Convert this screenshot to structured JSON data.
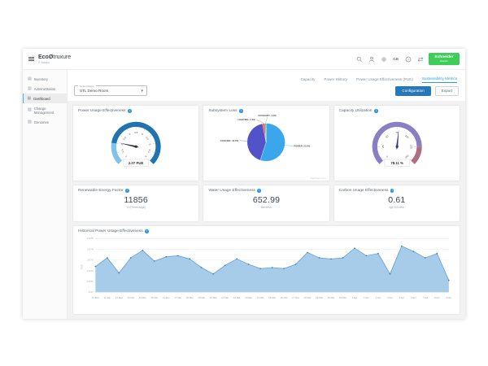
{
  "topbar": {
    "logo": {
      "brand_bold": "Eco",
      "brand_rest": "truxure",
      "subtitle": "IT Advisor"
    },
    "icons": [
      "search-icon",
      "user-icon",
      "settings-icon",
      "language-label",
      "help-icon",
      "swap-icon"
    ],
    "language": "GB",
    "brand_badge": {
      "line1": "Schneider",
      "line2": "Electric"
    }
  },
  "tabs": {
    "items": [
      {
        "label": "Capacity",
        "active": false
      },
      {
        "label": "Power History",
        "active": false
      },
      {
        "label": "Power Usage Effectiveness (PUE)",
        "active": false
      },
      {
        "label": "Sustainability Metrics",
        "active": true
      }
    ]
  },
  "sidebar": {
    "items": [
      {
        "label": "Inventory",
        "icon": "inventory-icon",
        "active": false
      },
      {
        "label": "Administration",
        "icon": "administration-icon",
        "active": false
      },
      {
        "label": "Dashboard",
        "icon": "dashboard-icon",
        "active": true
      },
      {
        "label": "Change Management",
        "icon": "change-management-icon",
        "active": false
      },
      {
        "label": "Genomes",
        "icon": "genomes-icon",
        "active": false
      }
    ]
  },
  "toolbar": {
    "selector_label": "Select Room",
    "selector_value": "STL Demo Room",
    "configuration_label": "Configuration",
    "export_label": "Export"
  },
  "metric_cards": [
    {
      "title": "Renewable Energy Factor",
      "value": "11856",
      "unit": "% (Percentage)"
    },
    {
      "title": "Water Usage Effectiveness",
      "value": "652.99",
      "unit": "liter/kWh"
    },
    {
      "title": "Carbon Usage Effectiveness",
      "value": "0.61",
      "unit": "kgCO2/kWh"
    }
  ],
  "chart_data": [
    {
      "type": "gauge",
      "title": "Power Usage Effectiveness",
      "min": 1,
      "max": 6,
      "value": 2.07,
      "value_label": "2.07 PUE",
      "ticks": [
        1,
        1.5,
        2,
        2.5,
        3,
        3.5,
        4,
        4.5,
        5,
        5.5,
        6
      ],
      "bands": [
        {
          "from": 1,
          "to": 2,
          "color": "#7fc3e8"
        },
        {
          "from": 2,
          "to": 6,
          "color": "#1f73ae"
        }
      ],
      "needle_color": "#333333"
    },
    {
      "type": "pie",
      "title": "Subsystem Loss",
      "watermark": "Highcharts.com",
      "slices": [
        {
          "name": "POWER",
          "value": 55.0,
          "color": "#3aa7ec"
        },
        {
          "name": "COOLING",
          "value": 42.0,
          "color": "#5452c9"
        },
        {
          "name": "LIGHTING",
          "value": 2.0,
          "color": "#e4574f"
        },
        {
          "name": "AUXILIARY",
          "value": 1.0,
          "color": "#63b463"
        }
      ]
    },
    {
      "type": "gauge",
      "title": "Capacity Utilization",
      "min": 0,
      "max": 150,
      "value": 78.11,
      "value_label": "78.11 %",
      "ticks": [
        0,
        25,
        50,
        75,
        100,
        125,
        150
      ],
      "bands": [
        {
          "from": 0,
          "to": 125,
          "color": "#8a7fc2"
        },
        {
          "from": 125,
          "to": 150,
          "color": "#b06e85"
        }
      ],
      "needle_color": "#283593"
    },
    {
      "type": "area",
      "title": "Historical Power Usage Effectiveness",
      "ylabel": "PUE",
      "ylim": [
        2.07,
        2.075
      ],
      "yticks": [
        2.07,
        2.071,
        2.072,
        2.073,
        2.074,
        2.075
      ],
      "grid": true,
      "legend": "none",
      "line_color": "#5c9bd3",
      "fill_color": "#a6cce9",
      "marker_color": "#30689c",
      "categories": [
        "10 Mar",
        "11 Mar",
        "12 Mar",
        "13 Mar",
        "14 Mar",
        "15 Mar",
        "16 Mar",
        "17 Mar",
        "18 Mar",
        "19 Mar",
        "20 Mar",
        "21 Mar",
        "22 Mar",
        "23 Mar",
        "24 Mar",
        "25 Mar",
        "26 Mar",
        "27 Mar",
        "28 Mar",
        "29 Mar",
        "30 Mar",
        "31 Mar",
        "1 Apr",
        "2 Apr",
        "3 Apr",
        "4 Apr",
        "5 Apr",
        "6 Apr",
        "7 Apr",
        "8 Apr",
        "9 Apr"
      ],
      "values": [
        2.0724,
        2.0732,
        2.0718,
        2.0732,
        2.0739,
        2.0729,
        2.0733,
        2.0734,
        2.0731,
        2.0723,
        2.0717,
        2.0725,
        2.0731,
        2.0726,
        2.0722,
        2.0723,
        2.0722,
        2.0726,
        2.0737,
        2.0732,
        2.0731,
        2.0732,
        2.0741,
        2.0734,
        2.0736,
        2.0717,
        2.0743,
        2.0738,
        2.0732,
        2.0736,
        2.0711
      ]
    }
  ]
}
